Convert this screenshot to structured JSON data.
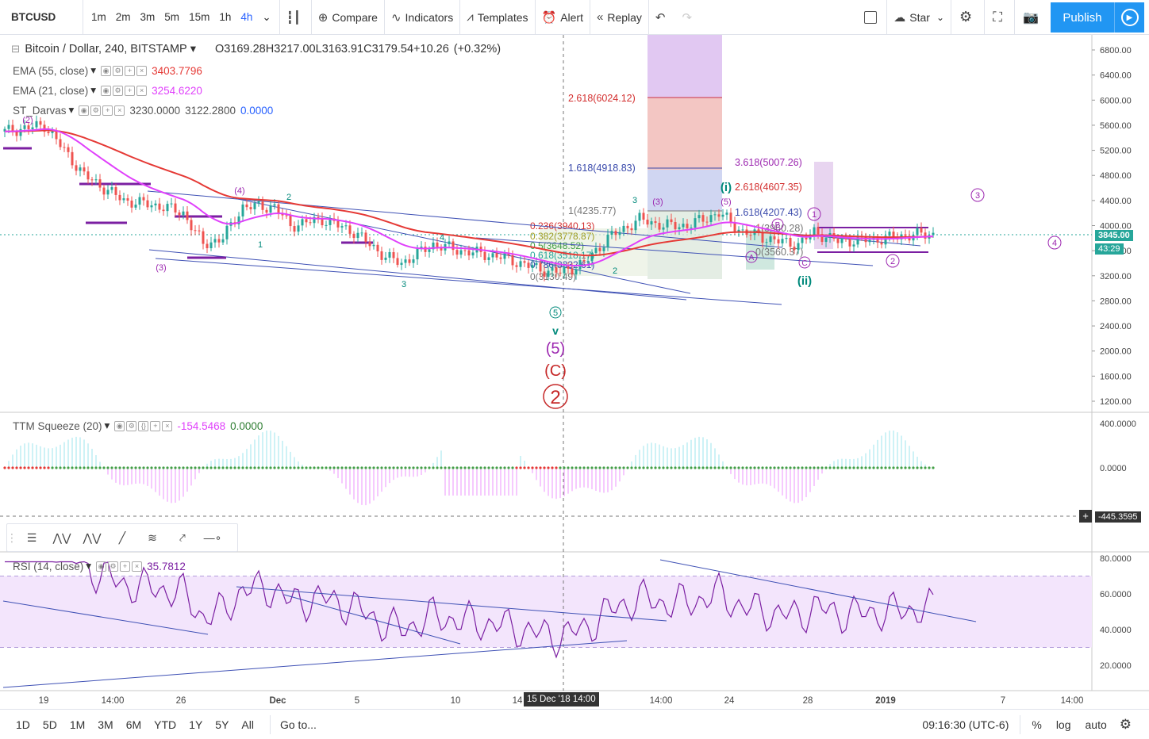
{
  "toolbar": {
    "symbol": "BTCUSD",
    "timeframes": [
      "1m",
      "2m",
      "3m",
      "5m",
      "15m",
      "1h",
      "4h"
    ],
    "active_timeframe": "4h",
    "compare": "Compare",
    "indicators": "Indicators",
    "templates": "Templates",
    "alert": "Alert",
    "replay": "Replay",
    "star": "Star",
    "publish": "Publish"
  },
  "legend": {
    "title": "Bitcoin / Dollar, 240, BITSTAMP",
    "open_label": "O",
    "open": "3169.28",
    "high_label": "H",
    "high": "3217.00",
    "low_label": "L",
    "low": "3163.91",
    "close_label": "C",
    "close": "3179.54",
    "change": "+10.26",
    "change_pct": "(+0.32%)",
    "ema55": "EMA (55, close)",
    "ema55_val": "3403.7796",
    "ema21": "EMA (21, close)",
    "ema21_val": "3254.6220",
    "darvas": "ST_Darvas",
    "darvas_v1": "3230.0000",
    "darvas_v2": "3122.2800",
    "darvas_v3": "0.0000"
  },
  "ttm": {
    "label": "TTM Squeeze (20)",
    "v1": "-154.5468",
    "v2": "0.0000"
  },
  "rsi": {
    "label": "RSI (14, close)",
    "value": "35.7812"
  },
  "price_axis": {
    "ticks": [
      "6800.00",
      "6400.00",
      "6000.00",
      "5600.00",
      "5200.00",
      "4800.00",
      "4400.00",
      "4000.00",
      "3600.00",
      "3200.00",
      "2800.00",
      "2400.00",
      "2000.00",
      "1600.00",
      "1200.00"
    ],
    "last_price": "3845.00",
    "countdown": "43:29"
  },
  "ttm_axis": {
    "ticks": [
      "400.0000",
      "0.0000"
    ],
    "cursor_value": "-445.3595"
  },
  "rsi_axis": {
    "ticks": [
      "80.0000",
      "60.0000",
      "40.0000",
      "20.0000"
    ]
  },
  "time_axis": {
    "ticks": [
      "19",
      "14:00",
      "26",
      "Dec",
      "5",
      "10",
      "14",
      "14:00",
      "24",
      "28",
      "2019",
      "7",
      "14:00"
    ],
    "cursor_label": "15 Dec '18   14:00"
  },
  "fib_left": [
    "0.236(3940.13)",
    "0.382(3778.87)",
    "0.5(3648.52)",
    "0.618(3518.17)",
    "0.786(3332.61)",
    "0(3130.49)"
  ],
  "fib_top": [
    "2.618(6024.12)",
    "1.618(4918.83)",
    "1(4235.77)"
  ],
  "fib_right": [
    "3.618(5007.26)",
    "2.618(4607.35)",
    "1.618(4207.43)",
    "1(3960.28)",
    "0(3560.37)"
  ],
  "wave_labels": {
    "big_v": "v",
    "big_5": "(5)",
    "big_C": "(C)",
    "big_2": "2",
    "i": "(i)",
    "ii": "(ii)",
    "circ3": "3",
    "circ4": "4",
    "circ2": "2",
    "circ1": "1",
    "A": "A",
    "B": "B",
    "C": "C",
    "paren4": "(4)",
    "paren3": "(3)",
    "paren2": "(2)",
    "paren5": "(5)",
    "w1": "1",
    "w2": "2",
    "w3": "3",
    "w4": "4",
    "w5": "5"
  },
  "bottombar": {
    "ranges": [
      "1D",
      "5D",
      "1M",
      "3M",
      "6M",
      "YTD",
      "1Y",
      "5Y",
      "All"
    ],
    "goto": "Go to...",
    "time": "09:16:30 (UTC-6)",
    "percent": "%",
    "log": "log",
    "auto": "auto"
  },
  "colors": {
    "ema55": "#e53935",
    "ema21": "#e040fb",
    "up": "#26a69a",
    "down": "#ef5350",
    "trend": "#3f51b5",
    "rsi_band": "#f3e5fc",
    "accent": "#2962ff"
  }
}
